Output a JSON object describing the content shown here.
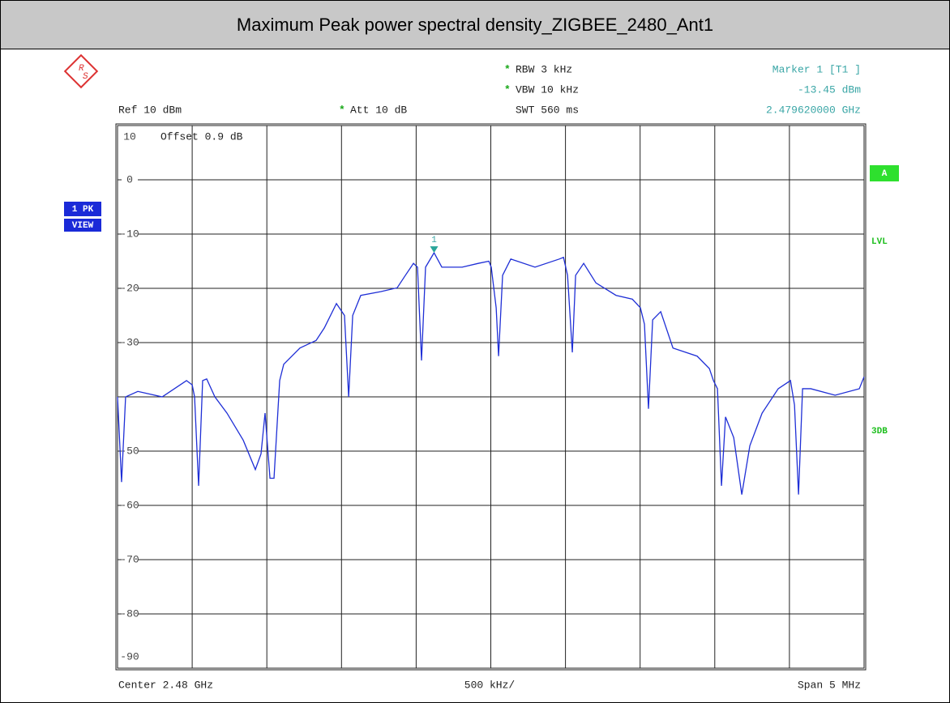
{
  "header": {
    "title": "Maximum Peak power spectral density_ZIGBEE_2480_Ant1",
    "settings": [
      {
        "star": "*",
        "text": "RBW 3 kHz"
      },
      {
        "star": "*",
        "text": "VBW 10 kHz"
      },
      {
        "star": "",
        "text": "SWT 560 ms"
      }
    ],
    "ref": "Ref 10 dBm",
    "att": {
      "star": "*",
      "text": "Att 10 dB"
    },
    "marker_lines": [
      "Marker 1 [T1 ]",
      "-13.45 dBm",
      "2.479620000 GHz"
    ],
    "offset": "Offset 0.9 dB",
    "left_badges": [
      "1 PK",
      "VIEW"
    ],
    "right_badges": [
      "A",
      "LVL",
      "3DB"
    ],
    "footer": [
      "Center 2.48 GHz",
      "500 kHz/",
      "Span 5 MHz"
    ]
  },
  "chart_data": {
    "type": "line",
    "color": "#1f2fd6",
    "grid": true,
    "xlim": [
      2.4775,
      2.4825
    ],
    "xticks": [
      2.4775,
      2.478,
      2.4785,
      2.479,
      2.4795,
      2.48,
      2.4805,
      2.481,
      2.4815,
      2.482,
      2.4825
    ],
    "ylim": [
      -90,
      10
    ],
    "yticks": [
      10,
      0,
      -10,
      -20,
      -30,
      -40,
      -50,
      -60,
      -70,
      -80,
      -90
    ],
    "ytick_labels_shown": [
      10,
      0,
      -10,
      -20,
      -30,
      -50,
      -60,
      -70,
      -80,
      -90
    ],
    "x": [
      2.4775,
      2.477527,
      2.477554,
      2.477636,
      2.477799,
      2.477962,
      2.478,
      2.478016,
      2.478043,
      2.47807,
      2.478097,
      2.478152,
      2.478233,
      2.478342,
      2.478423,
      2.478461,
      2.478488,
      2.478521,
      2.478548,
      2.478586,
      2.478613,
      2.478722,
      2.47883,
      2.478885,
      2.478966,
      2.47902,
      2.479048,
      2.479075,
      2.479129,
      2.479265,
      2.479373,
      2.479428,
      2.479482,
      2.479509,
      2.479536,
      2.479563,
      2.47962,
      2.479672,
      2.479808,
      2.479916,
      2.479987,
      2.480003,
      2.480036,
      2.480052,
      2.480079,
      2.480134,
      2.480296,
      2.480459,
      2.480487,
      2.480514,
      2.480546,
      2.480568,
      2.480622,
      2.480704,
      2.480839,
      2.480948,
      2.481002,
      2.481029,
      2.481056,
      2.481084,
      2.481138,
      2.48122,
      2.481382,
      2.481464,
      2.481491,
      2.481518,
      2.481545,
      2.481572,
      2.481627,
      2.481681,
      2.481735,
      2.481817,
      2.481925,
      2.482007,
      2.482034,
      2.482061,
      2.482088,
      2.482143,
      2.482306,
      2.482468,
      2.4825
    ],
    "values": [
      -40,
      -55.7,
      -40,
      -39,
      -40,
      -37,
      -37.8,
      -40,
      -56.4,
      -37,
      -36.7,
      -40,
      -43,
      -48,
      -53.4,
      -50.5,
      -43,
      -55,
      -55,
      -37,
      -34,
      -31,
      -29.6,
      -27.3,
      -22.8,
      -25,
      -40,
      -25,
      -21.3,
      -20.6,
      -19.9,
      -17.6,
      -15.4,
      -16.1,
      -33.3,
      -16.1,
      -13.45,
      -16.1,
      -16.1,
      -15.4,
      -15,
      -16.1,
      -23.6,
      -32.5,
      -17.6,
      -14.6,
      -16.1,
      -14.6,
      -14.3,
      -17.6,
      -31.8,
      -17.6,
      -15.4,
      -19,
      -21.3,
      -22,
      -23.6,
      -26.6,
      -42.2,
      -25.8,
      -24.3,
      -31,
      -32.5,
      -34.8,
      -37,
      -38.5,
      -56.4,
      -43.7,
      -47.5,
      -58,
      -49,
      -43,
      -38.5,
      -37,
      -41.5,
      -58,
      -38.5,
      -38.5,
      -39.7,
      -38.5,
      -36.3
    ],
    "marker": {
      "label": "1",
      "x": 2.47962,
      "value": -13.45
    }
  }
}
